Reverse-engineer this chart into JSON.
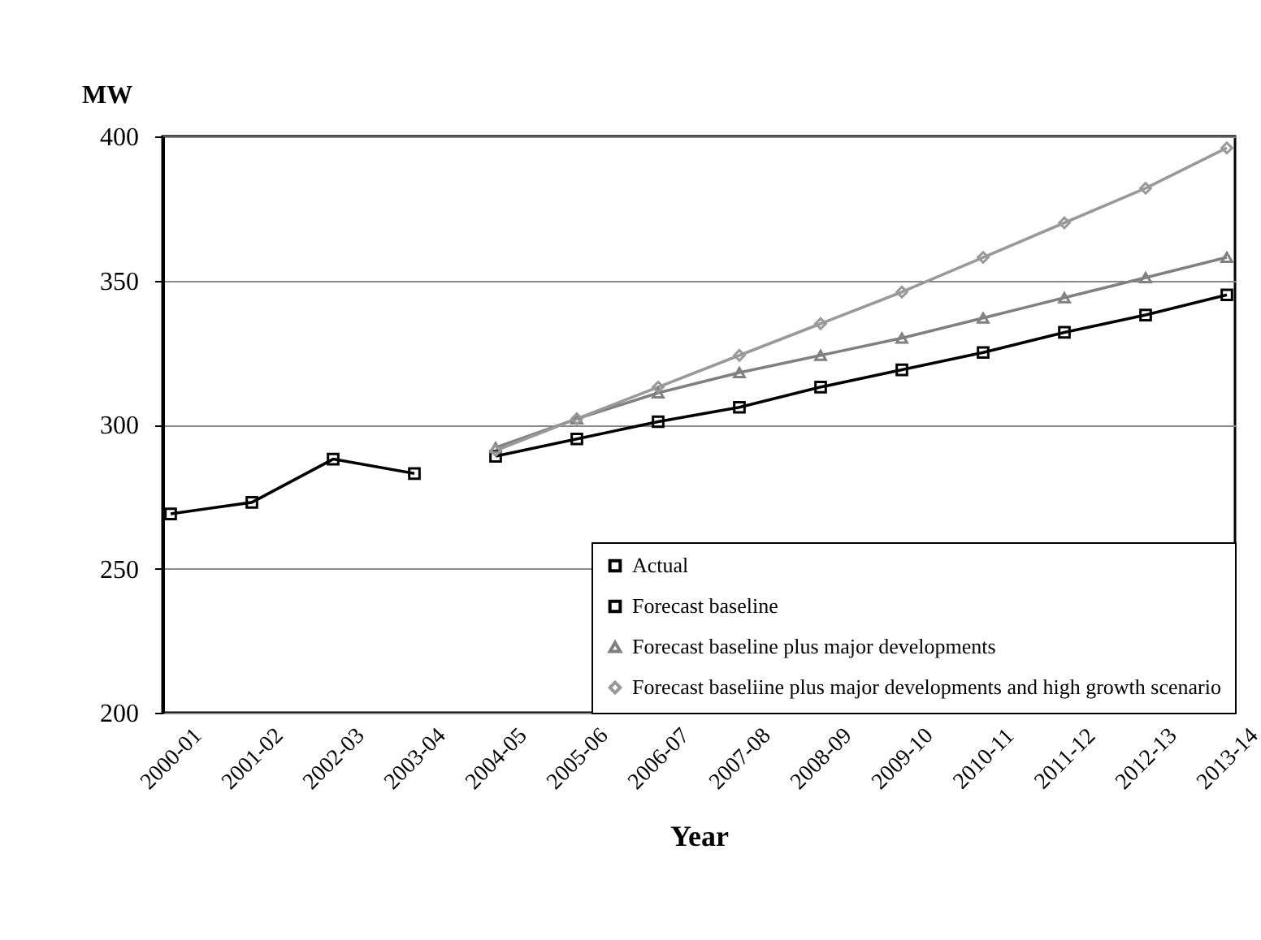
{
  "chart_data": {
    "type": "line",
    "xlabel": "Year",
    "ylabel": "MW",
    "categories": [
      "2000-01",
      "2001-02",
      "2002-03",
      "2003-04",
      "2004-05",
      "2005-06",
      "2006-07",
      "2007-08",
      "2008-09",
      "2009-10",
      "2010-11",
      "2011-12",
      "2012-13",
      "2013-14"
    ],
    "series": [
      {
        "name": "Actual",
        "color": "#000000",
        "marker": "square",
        "values": [
          269,
          273,
          288,
          283,
          null,
          null,
          null,
          null,
          null,
          null,
          null,
          null,
          null,
          null
        ]
      },
      {
        "name": "Forecast baseline",
        "color": "#000000",
        "marker": "square",
        "values": [
          null,
          null,
          null,
          null,
          289,
          295,
          301,
          306,
          313,
          319,
          325,
          332,
          338,
          345
        ]
      },
      {
        "name": "Forecast baseline plus major developments",
        "color": "#808080",
        "marker": "triangle",
        "values": [
          null,
          null,
          null,
          null,
          292,
          302,
          311,
          318,
          324,
          330,
          337,
          344,
          351,
          358
        ]
      },
      {
        "name": "Forecast baseliine plus major developments and high growth scenario",
        "color": "#999999",
        "marker": "diamond",
        "values": [
          null,
          null,
          null,
          null,
          291,
          302,
          313,
          324,
          335,
          346,
          358,
          370,
          382,
          396
        ]
      }
    ],
    "ylim": [
      200,
      400
    ],
    "yticks": [
      200,
      250,
      300,
      350,
      400
    ],
    "grid": "y",
    "legend": "bottom right"
  }
}
